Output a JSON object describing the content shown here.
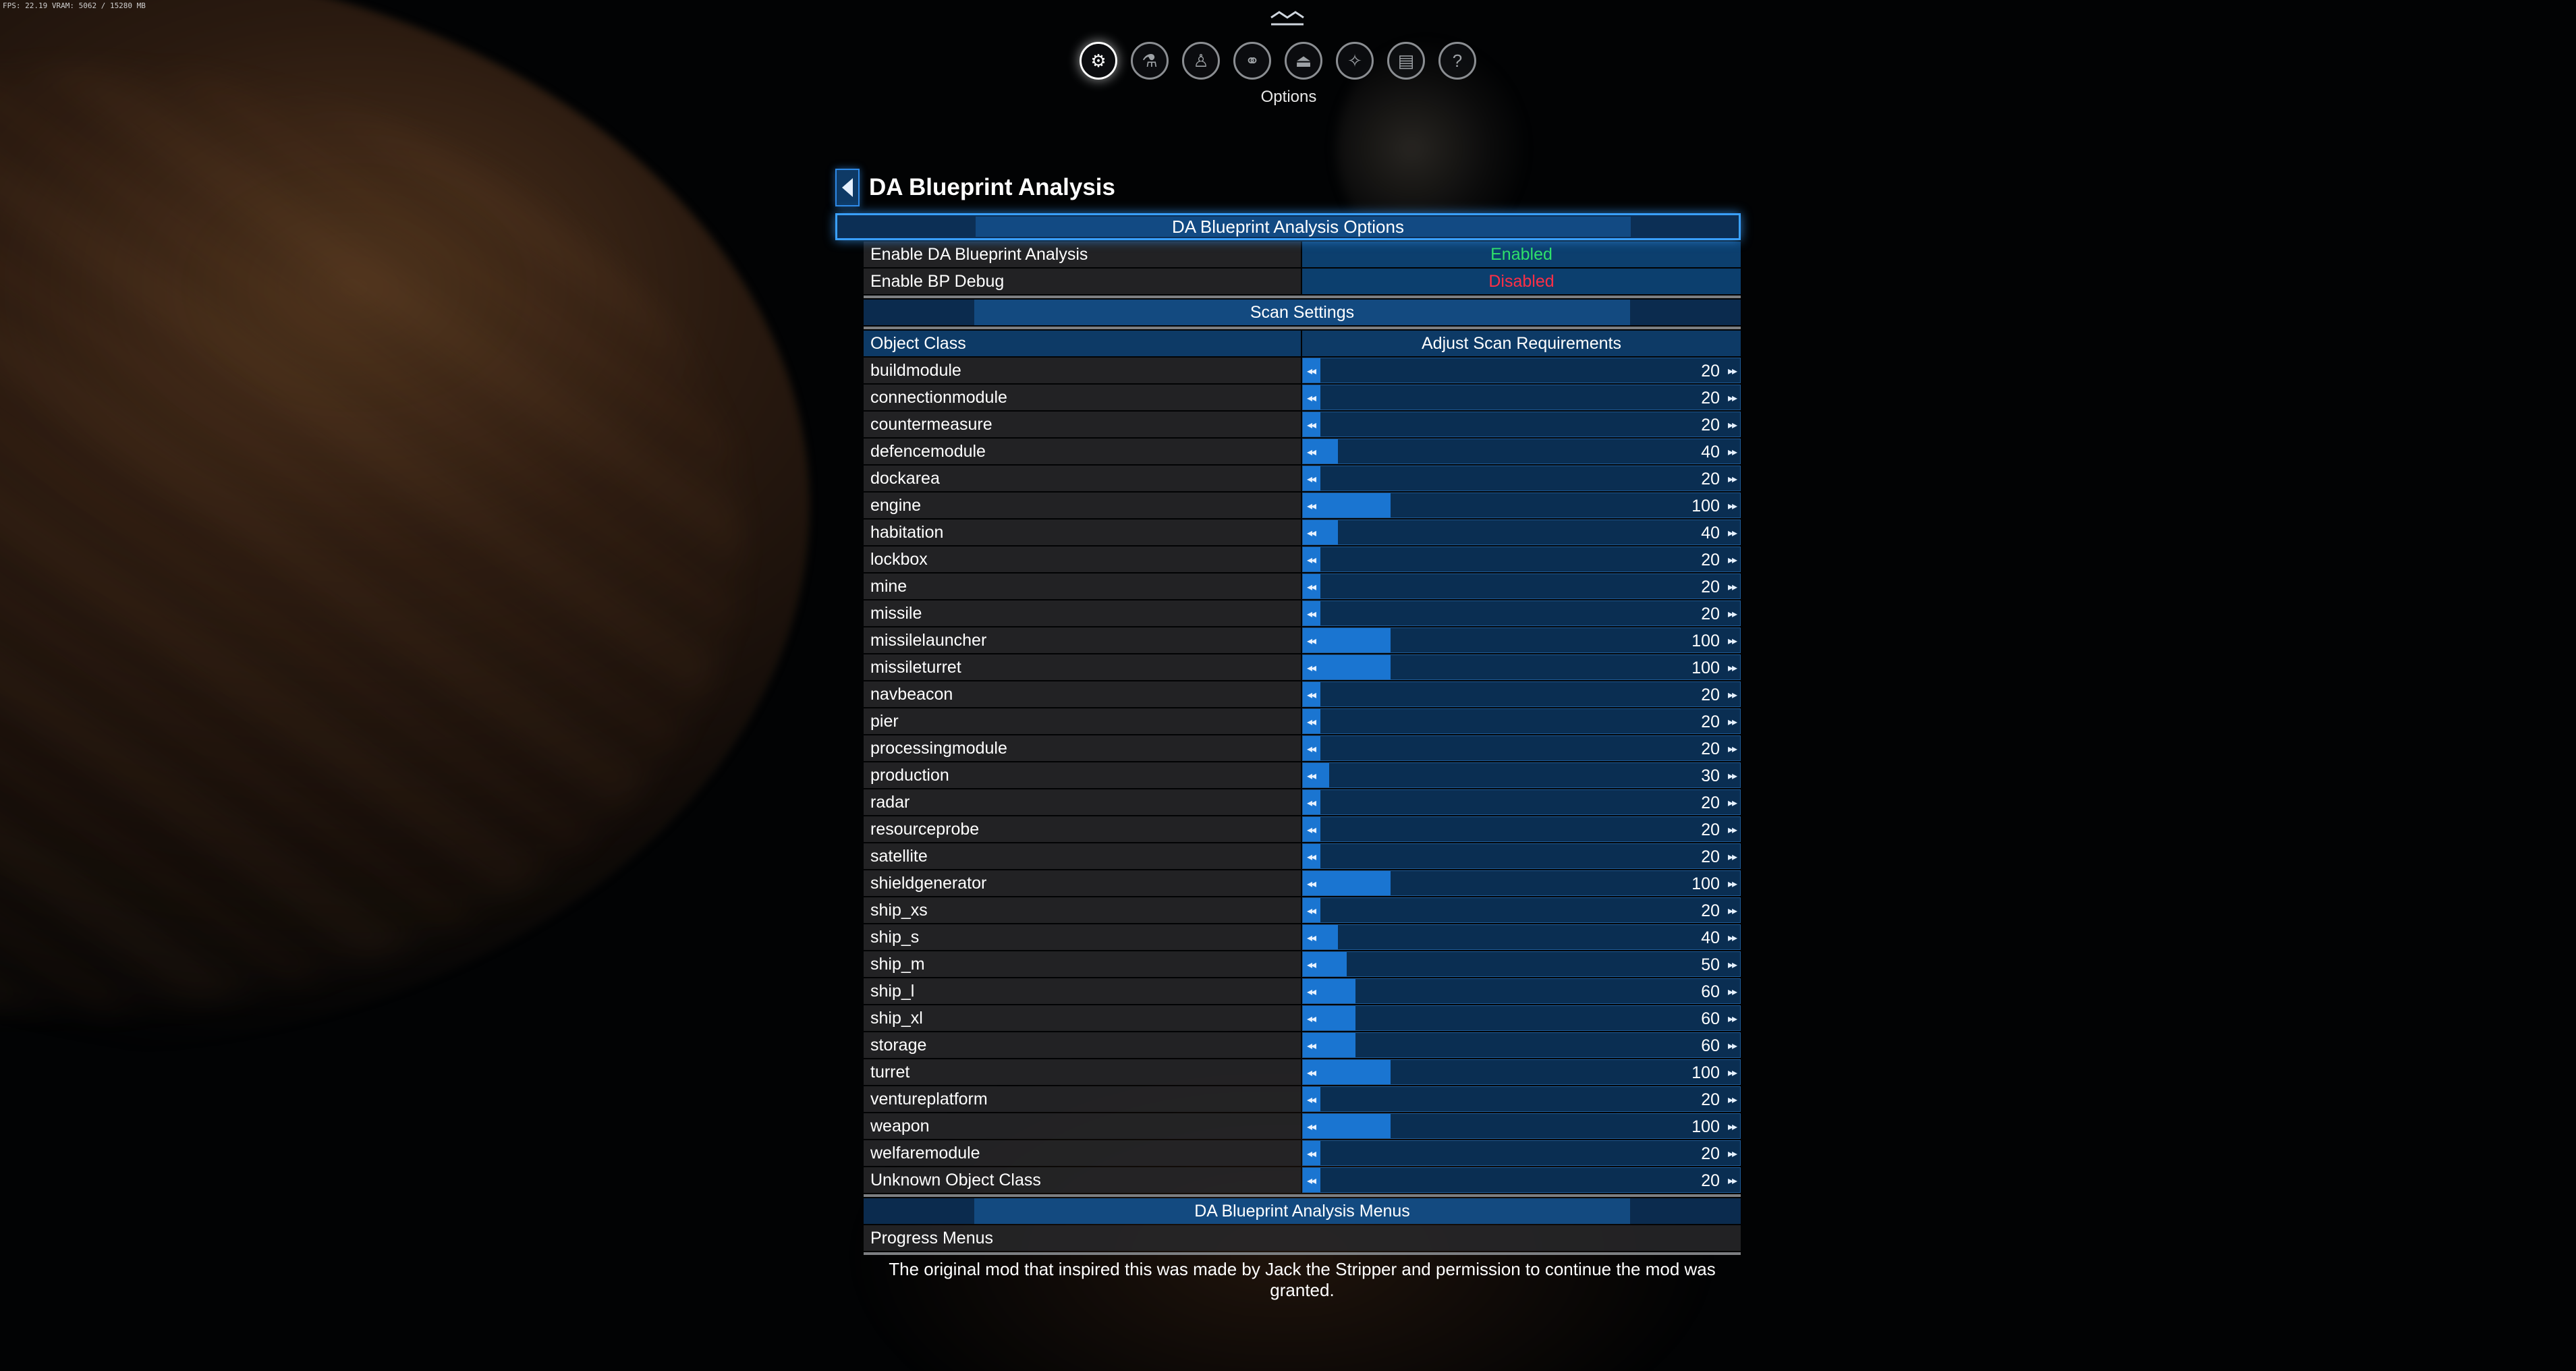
{
  "fps_text": "FPS: 22.19  VRAM: 5062 / 15280 MB",
  "nav": {
    "active_label": "Options",
    "icons": [
      "gear-icon",
      "flask-icon",
      "person-icon",
      "handshake-icon",
      "ship-icon",
      "map-icon",
      "encyclopedia-icon",
      "help-icon"
    ]
  },
  "panel": {
    "title": "DA Blueprint Analysis",
    "options_header": "DA Blueprint Analysis Options",
    "settings": [
      {
        "label": "Enable DA Blueprint Analysis",
        "value": "Enabled"
      },
      {
        "label": "Enable BP Debug",
        "value": "Disabled"
      }
    ],
    "scan_header": "Scan Settings",
    "col_object": "Object Class",
    "col_adjust": "Adjust Scan Requirements",
    "slider_max": 500,
    "rows": [
      {
        "name": "buildmodule",
        "value": 20
      },
      {
        "name": "connectionmodule",
        "value": 20
      },
      {
        "name": "countermeasure",
        "value": 20
      },
      {
        "name": "defencemodule",
        "value": 40
      },
      {
        "name": "dockarea",
        "value": 20
      },
      {
        "name": "engine",
        "value": 100
      },
      {
        "name": "habitation",
        "value": 40
      },
      {
        "name": "lockbox",
        "value": 20
      },
      {
        "name": "mine",
        "value": 20
      },
      {
        "name": "missile",
        "value": 20
      },
      {
        "name": "missilelauncher",
        "value": 100
      },
      {
        "name": "missileturret",
        "value": 100
      },
      {
        "name": "navbeacon",
        "value": 20
      },
      {
        "name": "pier",
        "value": 20
      },
      {
        "name": "processingmodule",
        "value": 20
      },
      {
        "name": "production",
        "value": 30
      },
      {
        "name": "radar",
        "value": 20
      },
      {
        "name": "resourceprobe",
        "value": 20
      },
      {
        "name": "satellite",
        "value": 20
      },
      {
        "name": "shieldgenerator",
        "value": 100
      },
      {
        "name": "ship_xs",
        "value": 20
      },
      {
        "name": "ship_s",
        "value": 40
      },
      {
        "name": "ship_m",
        "value": 50
      },
      {
        "name": "ship_l",
        "value": 60
      },
      {
        "name": "ship_xl",
        "value": 60
      },
      {
        "name": "storage",
        "value": 60
      },
      {
        "name": "turret",
        "value": 100
      },
      {
        "name": "ventureplatform",
        "value": 20
      },
      {
        "name": "weapon",
        "value": 100
      },
      {
        "name": "welfaremodule",
        "value": 20
      },
      {
        "name": "Unknown Object Class",
        "value": 20
      }
    ],
    "menus_header": "DA Blueprint Analysis Menus",
    "menu_item": "Progress Menus",
    "footer": "The original mod that inspired this was made by Jack the Stripper and permission to continue the mod was granted."
  }
}
